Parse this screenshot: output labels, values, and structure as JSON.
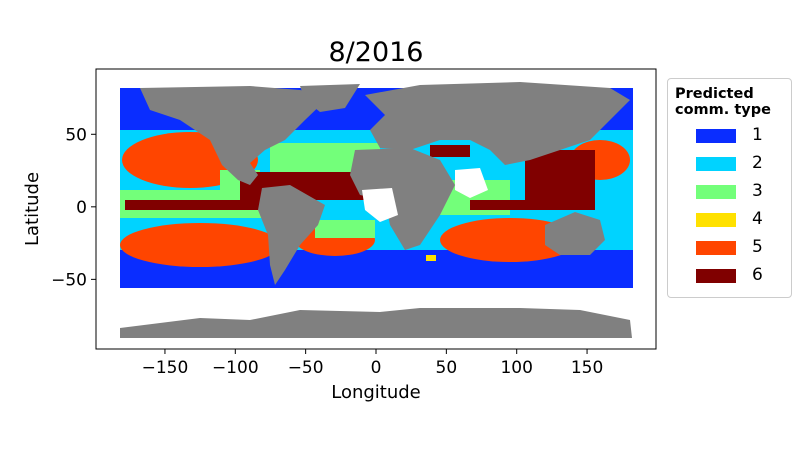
{
  "title": "8/2016",
  "xlabel": "Longitude",
  "ylabel": "Latitude",
  "xticks": [
    "−150",
    "−100",
    "−50",
    "0",
    "50",
    "100",
    "150"
  ],
  "xtick_values": [
    -150,
    -100,
    -50,
    0,
    50,
    100,
    150
  ],
  "yticks": [
    "50",
    "0",
    "−50"
  ],
  "ytick_values": [
    50,
    0,
    -50
  ],
  "xlim": [
    -199,
    199
  ],
  "ylim": [
    -98,
    95
  ],
  "colors": {
    "land": "#808080",
    "ocean_background": "#ffffff"
  },
  "legend": {
    "title": "Predicted\ncomm. type",
    "placement": "outside-right",
    "items": [
      {
        "label": "1",
        "color": "#0a2dff"
      },
      {
        "label": "2",
        "color": "#00d3ff"
      },
      {
        "label": "3",
        "color": "#73ff7a"
      },
      {
        "label": "4",
        "color": "#ffe100"
      },
      {
        "label": "5",
        "color": "#ff4500"
      },
      {
        "label": "6",
        "color": "#800000"
      }
    ]
  }
}
